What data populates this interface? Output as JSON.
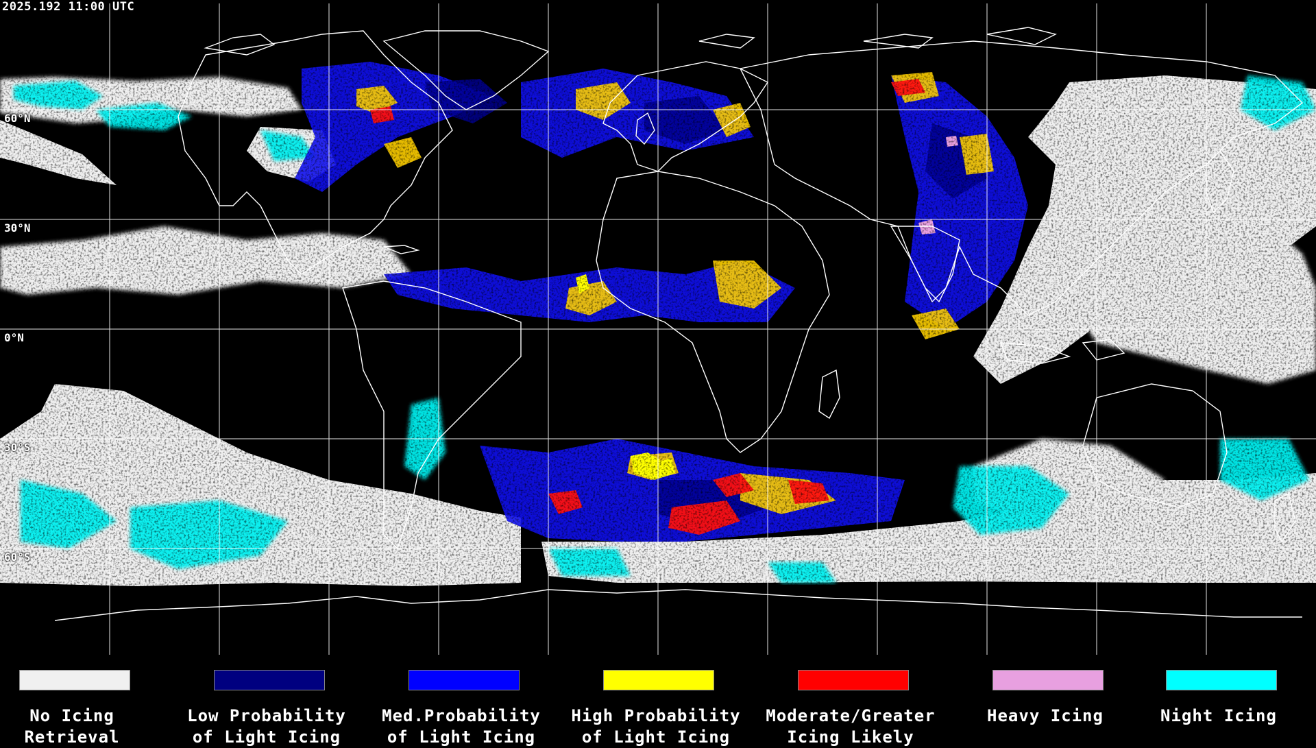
{
  "timestamp": "2025.192 11:00 UTC",
  "latitude_labels": [
    "60°N",
    "30°N",
    "0°N",
    "30°S",
    "60°S"
  ],
  "legend": [
    {
      "label_line1": "No Icing",
      "label_line2": "Retrieval",
      "color": "#f0f0f0"
    },
    {
      "label_line1": "Low Probability",
      "label_line2": "of Light Icing",
      "color": "#000080"
    },
    {
      "label_line1": "Med.Probability",
      "label_line2": "of Light Icing",
      "color": "#0000ff"
    },
    {
      "label_line1": "High Probability",
      "label_line2": "of Light Icing",
      "color": "#ffff00"
    },
    {
      "label_line1": "Moderate/Greater",
      "label_line2": "Icing Likely",
      "color": "#ff0000"
    },
    {
      "label_line1": "Heavy Icing",
      "label_line2": "",
      "color": "#e8a0e0"
    },
    {
      "label_line1": "Night Icing",
      "label_line2": "",
      "color": "#00ffff"
    }
  ]
}
